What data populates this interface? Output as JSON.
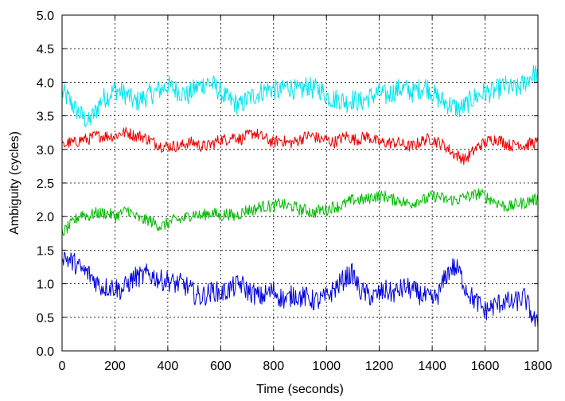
{
  "chart_data": {
    "type": "line",
    "xlabel": "Time (seconds)",
    "ylabel": "Ambiguity (cycles)",
    "xlim": [
      0,
      1800
    ],
    "ylim": [
      0.0,
      5.0
    ],
    "x_ticks": [
      0,
      200,
      400,
      600,
      800,
      1000,
      1200,
      1400,
      1600,
      1800
    ],
    "y_ticks": [
      0.0,
      0.5,
      1.0,
      1.5,
      2.0,
      2.5,
      3.0,
      3.5,
      4.0,
      4.5,
      5.0
    ],
    "x_tick_labels": [
      "0",
      "200",
      "400",
      "600",
      "800",
      "1000",
      "1200",
      "1400",
      "1600",
      "1800"
    ],
    "y_tick_labels": [
      "0.0",
      "0.5",
      "1.0",
      "1.5",
      "2.0",
      "2.5",
      "3.0",
      "3.5",
      "4.0",
      "4.5",
      "5.0"
    ],
    "grid": true,
    "series": [
      {
        "color": "#00e5ee",
        "x": [
          0,
          25,
          50,
          75,
          100,
          125,
          150,
          175,
          200,
          225,
          250,
          275,
          300,
          325,
          350,
          375,
          400,
          425,
          450,
          475,
          500,
          525,
          550,
          575,
          600,
          625,
          650,
          675,
          700,
          725,
          750,
          775,
          800,
          825,
          850,
          875,
          900,
          925,
          950,
          975,
          1000,
          1025,
          1050,
          1075,
          1100,
          1125,
          1150,
          1175,
          1200,
          1225,
          1250,
          1275,
          1300,
          1325,
          1350,
          1375,
          1400,
          1425,
          1450,
          1475,
          1500,
          1525,
          1550,
          1575,
          1600,
          1625,
          1650,
          1675,
          1700,
          1725,
          1750,
          1775,
          1800
        ],
        "y": [
          3.85,
          3.75,
          3.6,
          3.5,
          3.4,
          3.55,
          3.75,
          3.8,
          3.9,
          3.85,
          3.8,
          3.7,
          3.75,
          3.8,
          3.85,
          3.9,
          3.95,
          3.9,
          3.85,
          3.8,
          3.9,
          3.95,
          4.0,
          3.95,
          3.85,
          3.75,
          3.7,
          3.65,
          3.75,
          3.8,
          3.85,
          3.9,
          3.9,
          3.85,
          3.95,
          3.9,
          3.85,
          3.95,
          3.9,
          3.9,
          3.8,
          3.75,
          3.75,
          3.7,
          3.75,
          3.7,
          3.75,
          3.8,
          3.85,
          3.8,
          3.85,
          3.9,
          3.9,
          3.85,
          3.9,
          3.95,
          3.85,
          3.75,
          3.7,
          3.65,
          3.6,
          3.65,
          3.75,
          3.8,
          3.85,
          3.85,
          3.9,
          3.95,
          3.9,
          3.9,
          4.0,
          4.1,
          4.15
        ]
      },
      {
        "color": "#ee0000",
        "x": [
          0,
          25,
          50,
          75,
          100,
          125,
          150,
          175,
          200,
          225,
          250,
          275,
          300,
          325,
          350,
          375,
          400,
          425,
          450,
          475,
          500,
          525,
          550,
          575,
          600,
          625,
          650,
          675,
          700,
          725,
          750,
          775,
          800,
          825,
          850,
          875,
          900,
          925,
          950,
          975,
          1000,
          1025,
          1050,
          1075,
          1100,
          1125,
          1150,
          1175,
          1200,
          1225,
          1250,
          1275,
          1300,
          1325,
          1350,
          1375,
          1400,
          1425,
          1450,
          1475,
          1500,
          1525,
          1550,
          1575,
          1600,
          1625,
          1650,
          1675,
          1700,
          1725,
          1750,
          1775,
          1800
        ],
        "y": [
          3.05,
          3.1,
          3.1,
          3.15,
          3.15,
          3.2,
          3.2,
          3.2,
          3.2,
          3.25,
          3.25,
          3.2,
          3.2,
          3.15,
          3.1,
          3.05,
          3.05,
          3.05,
          3.05,
          3.1,
          3.1,
          3.05,
          3.05,
          3.1,
          3.15,
          3.15,
          3.2,
          3.15,
          3.2,
          3.25,
          3.2,
          3.15,
          3.1,
          3.15,
          3.1,
          3.1,
          3.15,
          3.2,
          3.2,
          3.15,
          3.15,
          3.1,
          3.15,
          3.2,
          3.15,
          3.15,
          3.2,
          3.15,
          3.1,
          3.1,
          3.1,
          3.1,
          3.05,
          3.05,
          3.1,
          3.15,
          3.15,
          3.1,
          3.05,
          2.95,
          2.9,
          2.85,
          2.95,
          3.05,
          3.1,
          3.15,
          3.15,
          3.1,
          3.05,
          3.1,
          3.05,
          3.1,
          3.1
        ]
      },
      {
        "color": "#00bb00",
        "x": [
          0,
          25,
          50,
          75,
          100,
          125,
          150,
          175,
          200,
          225,
          250,
          275,
          300,
          325,
          350,
          375,
          400,
          425,
          450,
          475,
          500,
          525,
          550,
          575,
          600,
          625,
          650,
          675,
          700,
          725,
          750,
          775,
          800,
          825,
          850,
          875,
          900,
          925,
          950,
          975,
          1000,
          1025,
          1050,
          1075,
          1100,
          1125,
          1150,
          1175,
          1200,
          1225,
          1250,
          1275,
          1300,
          1325,
          1350,
          1375,
          1400,
          1425,
          1450,
          1475,
          1500,
          1525,
          1550,
          1575,
          1600,
          1625,
          1650,
          1675,
          1700,
          1725,
          1750,
          1775,
          1800
        ],
        "y": [
          1.75,
          1.85,
          1.95,
          2.05,
          2.0,
          2.05,
          2.05,
          2.05,
          2.0,
          2.05,
          2.1,
          2.0,
          1.95,
          1.95,
          1.9,
          1.85,
          1.9,
          1.95,
          1.95,
          2.0,
          2.05,
          2.0,
          2.05,
          2.05,
          2.0,
          2.05,
          2.0,
          2.05,
          2.1,
          2.1,
          2.15,
          2.15,
          2.15,
          2.2,
          2.15,
          2.15,
          2.1,
          2.1,
          2.05,
          2.1,
          2.1,
          2.15,
          2.15,
          2.2,
          2.25,
          2.25,
          2.25,
          2.3,
          2.3,
          2.3,
          2.25,
          2.25,
          2.2,
          2.2,
          2.25,
          2.25,
          2.3,
          2.3,
          2.25,
          2.25,
          2.25,
          2.3,
          2.3,
          2.35,
          2.3,
          2.25,
          2.2,
          2.15,
          2.15,
          2.2,
          2.2,
          2.25,
          2.25
        ]
      },
      {
        "color": "#0000dd",
        "x": [
          0,
          25,
          50,
          75,
          100,
          125,
          150,
          175,
          200,
          225,
          250,
          275,
          300,
          325,
          350,
          375,
          400,
          425,
          450,
          475,
          500,
          525,
          550,
          575,
          600,
          625,
          650,
          675,
          700,
          725,
          750,
          775,
          800,
          825,
          850,
          875,
          900,
          925,
          950,
          975,
          1000,
          1025,
          1050,
          1075,
          1100,
          1125,
          1150,
          1175,
          1200,
          1225,
          1250,
          1275,
          1300,
          1325,
          1350,
          1375,
          1400,
          1425,
          1450,
          1475,
          1500,
          1525,
          1550,
          1575,
          1600,
          1625,
          1650,
          1675,
          1700,
          1725,
          1750,
          1775,
          1800
        ],
        "y": [
          1.45,
          1.35,
          1.3,
          1.2,
          1.15,
          1.05,
          0.95,
          0.95,
          0.95,
          0.9,
          1.0,
          1.1,
          1.1,
          1.15,
          1.1,
          1.05,
          1.05,
          1.0,
          1.0,
          0.95,
          0.85,
          0.8,
          0.85,
          0.9,
          0.85,
          0.9,
          0.95,
          1.0,
          0.9,
          0.85,
          0.8,
          0.85,
          0.9,
          0.8,
          0.75,
          0.85,
          0.8,
          0.8,
          0.75,
          0.75,
          0.8,
          0.9,
          1.0,
          1.1,
          1.15,
          0.9,
          0.85,
          0.8,
          0.85,
          0.9,
          0.85,
          0.9,
          0.95,
          0.9,
          0.85,
          0.8,
          0.75,
          0.85,
          1.1,
          1.25,
          1.2,
          0.95,
          0.8,
          0.7,
          0.6,
          0.65,
          0.7,
          0.75,
          0.7,
          0.75,
          0.8,
          0.55,
          0.35
        ]
      }
    ]
  }
}
